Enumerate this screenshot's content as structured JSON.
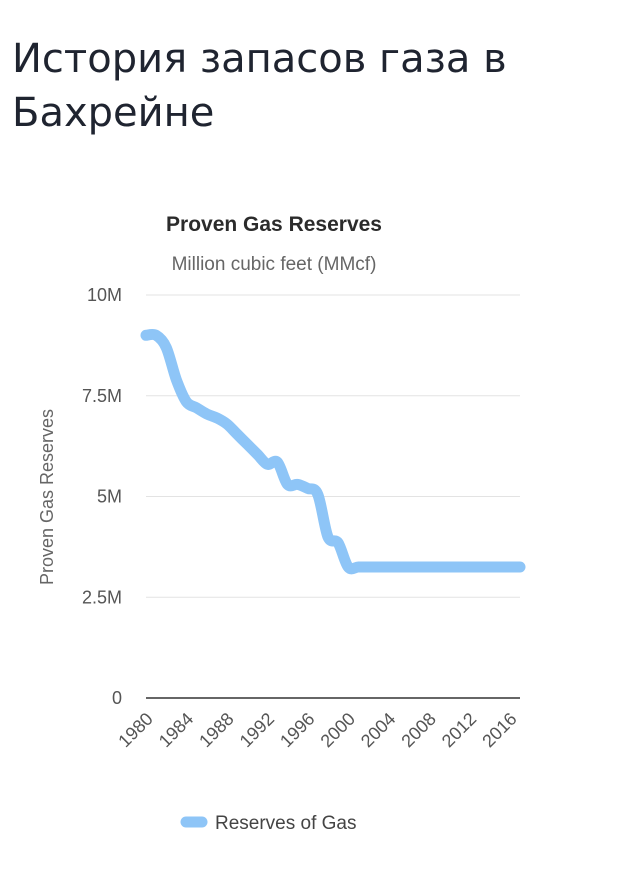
{
  "page": {
    "title": "История запасов газа в Бахрейне"
  },
  "colors": {
    "series": "#8ec5f7",
    "grid": "#e3e3e3",
    "baseline": "#333333"
  },
  "chart_data": {
    "type": "line",
    "title": "Proven Gas Reserves",
    "subtitle": "Million cubic feet (MMcf)",
    "ylabel": "Proven Gas Reserves",
    "xlabel": "",
    "ylim": [
      0,
      10000000
    ],
    "xlim": [
      1980,
      2017
    ],
    "yticks": [
      {
        "value": 0,
        "label": "0"
      },
      {
        "value": 2500000,
        "label": "2.5M"
      },
      {
        "value": 5000000,
        "label": "5M"
      },
      {
        "value": 7500000,
        "label": "7.5M"
      },
      {
        "value": 10000000,
        "label": "10M"
      }
    ],
    "xticks": [
      {
        "value": 1980,
        "label": "1980"
      },
      {
        "value": 1984,
        "label": "1984"
      },
      {
        "value": 1988,
        "label": "1988"
      },
      {
        "value": 1992,
        "label": "1992"
      },
      {
        "value": 1996,
        "label": "1996"
      },
      {
        "value": 2000,
        "label": "2000"
      },
      {
        "value": 2004,
        "label": "2004"
      },
      {
        "value": 2008,
        "label": "2008"
      },
      {
        "value": 2012,
        "label": "2012"
      },
      {
        "value": 2016,
        "label": "2016"
      }
    ],
    "grid": true,
    "legend_position": "bottom",
    "series": [
      {
        "name": "Reserves of Gas",
        "x": [
          1980,
          1981,
          1982,
          1983,
          1984,
          1985,
          1986,
          1987,
          1988,
          1989,
          1990,
          1991,
          1992,
          1993,
          1994,
          1995,
          1996,
          1997,
          1998,
          1999,
          2000,
          2001,
          2002,
          2003,
          2004,
          2005,
          2006,
          2007,
          2008,
          2009,
          2010,
          2011,
          2012,
          2013,
          2014,
          2015,
          2016,
          2017
        ],
        "values": [
          9000000,
          9000000,
          8700000,
          7900000,
          7350000,
          7200000,
          7050000,
          6950000,
          6800000,
          6550000,
          6300000,
          6050000,
          5800000,
          5850000,
          5300000,
          5300000,
          5200000,
          5050000,
          4000000,
          3850000,
          3250000,
          3250000,
          3250000,
          3250000,
          3250000,
          3250000,
          3250000,
          3250000,
          3250000,
          3250000,
          3250000,
          3250000,
          3250000,
          3250000,
          3250000,
          3250000,
          3250000,
          3250000
        ]
      }
    ]
  }
}
